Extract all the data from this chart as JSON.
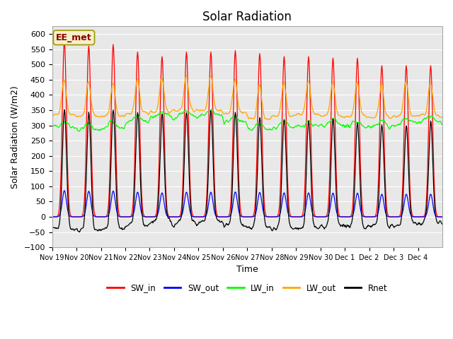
{
  "title": "Solar Radiation",
  "xlabel": "Time",
  "ylabel": "Solar Radiation (W/m2)",
  "annotation": "EE_met",
  "ylim": [
    -100,
    625
  ],
  "bg_color": "#e8e8e8",
  "legend": [
    {
      "label": "SW_in",
      "color": "red"
    },
    {
      "label": "SW_out",
      "color": "blue"
    },
    {
      "label": "LW_in",
      "color": "lime"
    },
    {
      "label": "LW_out",
      "color": "orange"
    },
    {
      "label": "Rnet",
      "color": "black"
    }
  ],
  "x_tick_labels": [
    "Nov 19",
    "Nov 20",
    "Nov 21",
    "Nov 22",
    "Nov 23",
    "Nov 24",
    "Nov 25",
    "Nov 26",
    "Nov 27",
    "Nov 28",
    "Nov 29",
    "Nov 30",
    "Dec 1",
    "Dec 2",
    "Dec 3",
    "Dec 4"
  ]
}
